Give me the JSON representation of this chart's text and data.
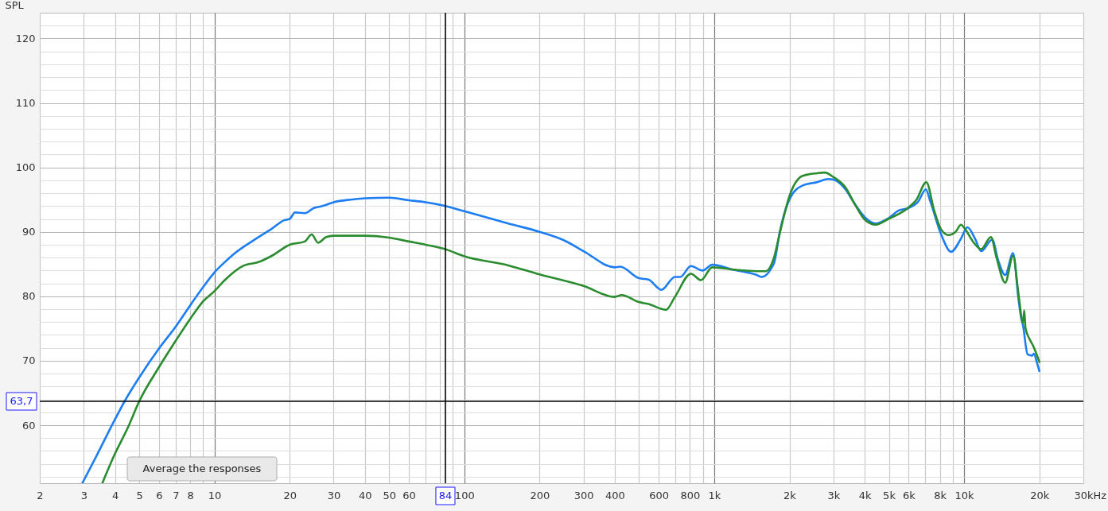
{
  "chart_data": {
    "type": "line",
    "ylabel": "SPL",
    "xlabel": "Hz",
    "xlim": [
      2,
      30000
    ],
    "ylim": [
      51,
      124
    ],
    "log": "x",
    "grid": true,
    "xticks": [
      2,
      3,
      4,
      5,
      6,
      7,
      8,
      {
        "value": 9,
        "label": null
      },
      10,
      20,
      30,
      40,
      50,
      60,
      {
        "value": 70,
        "label": null
      },
      {
        "value": 80,
        "label": null
      },
      {
        "value": 90,
        "label": null
      },
      100,
      200,
      300,
      400,
      {
        "value": 500,
        "label": null
      },
      600,
      {
        "value": 700,
        "label": null
      },
      800,
      {
        "value": 900,
        "label": null
      },
      {
        "value": 1000,
        "label": "1k"
      },
      {
        "value": 2000,
        "label": "2k"
      },
      {
        "value": 3000,
        "label": "3k"
      },
      {
        "value": 4000,
        "label": "4k"
      },
      {
        "value": 5000,
        "label": "5k"
      },
      {
        "value": 6000,
        "label": "6k"
      },
      {
        "value": 7000,
        "label": null
      },
      {
        "value": 8000,
        "label": "8k"
      },
      {
        "value": 9000,
        "label": null
      },
      {
        "value": 10000,
        "label": "10k"
      },
      {
        "value": 20000,
        "label": "20k"
      },
      {
        "value": 30000,
        "label": "30k"
      }
    ],
    "yticks": [
      {
        "value": 52,
        "label": null
      },
      {
        "value": 54,
        "label": null
      },
      {
        "value": 56,
        "label": null
      },
      {
        "value": 58,
        "label": null
      },
      60,
      {
        "value": 62,
        "label": null
      },
      {
        "value": 64,
        "label": null
      },
      {
        "value": 66,
        "label": null
      },
      {
        "value": 68,
        "label": null
      },
      70,
      {
        "value": 72,
        "label": null
      },
      {
        "value": 74,
        "label": null
      },
      {
        "value": 76,
        "label": null
      },
      {
        "value": 78,
        "label": null
      },
      80,
      {
        "value": 82,
        "label": null
      },
      {
        "value": 84,
        "label": null
      },
      {
        "value": 86,
        "label": null
      },
      {
        "value": 88,
        "label": null
      },
      90,
      {
        "value": 92,
        "label": null
      },
      {
        "value": 94,
        "label": null
      },
      {
        "value": 96,
        "label": null
      },
      {
        "value": 98,
        "label": null
      },
      100,
      {
        "value": 102,
        "label": null
      },
      {
        "value": 104,
        "label": null
      },
      {
        "value": 106,
        "label": null
      },
      {
        "value": 108,
        "label": null
      },
      110,
      {
        "value": 112,
        "label": null
      },
      {
        "value": 114,
        "label": null
      },
      {
        "value": 116,
        "label": null
      },
      {
        "value": 118,
        "label": null
      },
      120,
      {
        "value": 122,
        "label": null
      }
    ],
    "series": [
      {
        "color": "#1c7ef2",
        "x": [
          2.96,
          3.39,
          4.0,
          4.37,
          5,
          6,
          7,
          8,
          9,
          10,
          11,
          12,
          14.5,
          17,
          19,
          20,
          21,
          23,
          25,
          27,
          30,
          35,
          40,
          50,
          60,
          70,
          84,
          100,
          150,
          200,
          250,
          300,
          400,
          420,
          500,
          545,
          615,
          696,
          731,
          807,
          899,
          982,
          1200,
          1480,
          1550,
          1690,
          1740,
          1830,
          2010,
          2260,
          2580,
          2860,
          3000,
          3350,
          3640,
          4000,
          4430,
          4980,
          5470,
          6000,
          6550,
          7030,
          7300,
          8110,
          8870,
          9700,
          10310,
          11070,
          11700,
          12960,
          13680,
          14600,
          15700,
          16500,
          16900,
          17200,
          17950,
          18700,
          19000,
          19600,
          20000
        ],
        "values": [
          51,
          55.4,
          60.9,
          63.7,
          67.4,
          71.9,
          75.3,
          78.6,
          81.4,
          83.7,
          85.3,
          86.6,
          88.8,
          90.5,
          91.8,
          92.0,
          93.0,
          92.9,
          93.7,
          94.0,
          94.6,
          95.0,
          95.2,
          95.3,
          94.9,
          94.6,
          94.0,
          93.2,
          91.3,
          90.0,
          88.7,
          87.0,
          84.5,
          84.6,
          82.8,
          82.6,
          81.0,
          83.0,
          83.0,
          84.7,
          84.0,
          84.9,
          84.1,
          83.3,
          83.0,
          84.3,
          85.3,
          90.0,
          95.2,
          97.2,
          97.7,
          98.2,
          98.1,
          96.6,
          94.4,
          92.3,
          91.3,
          92.1,
          93.3,
          93.7,
          94.7,
          96.6,
          94.9,
          89.5,
          86.9,
          88.9,
          90.7,
          88.9,
          87.0,
          88.8,
          85.6,
          83.3,
          86.7,
          79.6,
          76.7,
          75.5,
          71.0,
          70.8,
          71.1,
          69.6,
          68.4
        ]
      },
      {
        "color": "#2a8c2f",
        "x": [
          3.56,
          3.98,
          4.5,
          5,
          6,
          7,
          8,
          9,
          10,
          11,
          13,
          15,
          17,
          20,
          23,
          24.5,
          26,
          28,
          30,
          40,
          50,
          60,
          70,
          84,
          100,
          150,
          200,
          300,
          400,
          426,
          499,
          545,
          641,
          696,
          807,
          885,
          982,
          1215,
          1480,
          1605,
          1740,
          1830,
          2010,
          2260,
          2580,
          2770,
          3000,
          3350,
          3640,
          4000,
          4430,
          4980,
          6000,
          6450,
          7060,
          7590,
          8110,
          8650,
          9240,
          9725,
          10020,
          10890,
          11700,
          12800,
          13460,
          14600,
          15700,
          16500,
          17200,
          17400,
          17600,
          18200,
          18900,
          19500,
          20000
        ],
        "values": [
          51,
          55.4,
          59.6,
          63.7,
          69.0,
          73.1,
          76.5,
          79.2,
          80.8,
          82.5,
          84.7,
          85.3,
          86.3,
          88.0,
          88.5,
          89.6,
          88.3,
          89.2,
          89.4,
          89.4,
          89.1,
          88.5,
          88.0,
          87.3,
          86.2,
          84.8,
          83.4,
          81.6,
          79.9,
          80.2,
          79.1,
          78.8,
          77.9,
          79.9,
          83.5,
          82.5,
          84.5,
          84.1,
          83.9,
          83.9,
          86.2,
          89.8,
          95.8,
          98.7,
          99.1,
          99.2,
          98.5,
          96.9,
          94.4,
          91.9,
          91.1,
          92.0,
          93.8,
          95.0,
          97.7,
          93.3,
          90.3,
          89.5,
          90.0,
          91.1,
          90.6,
          88.4,
          87.3,
          89.2,
          86.1,
          82.1,
          86.3,
          80.4,
          75.9,
          77.8,
          75.1,
          73.5,
          72.3,
          71.0,
          69.8
        ]
      }
    ],
    "ref_lines": [
      {
        "axis": "x",
        "value": 84,
        "label": "84",
        "color": "#000000"
      },
      {
        "axis": "y",
        "value": 63.7,
        "label": "63,7",
        "color": "#000000"
      }
    ],
    "annotations": [
      "Average the responses"
    ]
  }
}
